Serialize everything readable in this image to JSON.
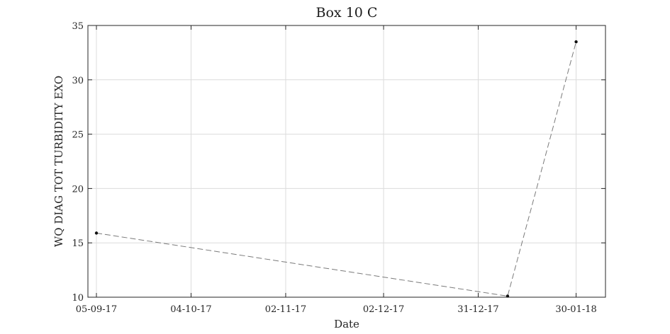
{
  "chart_data": {
    "type": "line",
    "title": "Box 10 C",
    "xlabel": "Date",
    "ylabel": "WQ DIAG TOT TURBIDITY EXO",
    "x_ticks": [
      "2017-09-05",
      "2017-10-04",
      "2017-11-02",
      "2017-12-02",
      "2017-12-31",
      "2018-01-30"
    ],
    "x_tick_labels": [
      "05-09-17",
      "04-10-17",
      "02-11-17",
      "02-12-17",
      "31-12-17",
      "30-01-18"
    ],
    "xlim": [
      "2017-09-05",
      "2018-02-08"
    ],
    "y_ticks": [
      10,
      15,
      20,
      25,
      30,
      35
    ],
    "ylim": [
      10,
      35
    ],
    "grid": true,
    "series": [
      {
        "x": [
          "2017-09-05",
          "2018-01-09",
          "2018-01-30"
        ],
        "y": [
          15.9,
          10.1,
          33.5
        ],
        "color": "#7a7a7a",
        "marker_color": "#111111",
        "line_style": "dashed"
      }
    ]
  }
}
